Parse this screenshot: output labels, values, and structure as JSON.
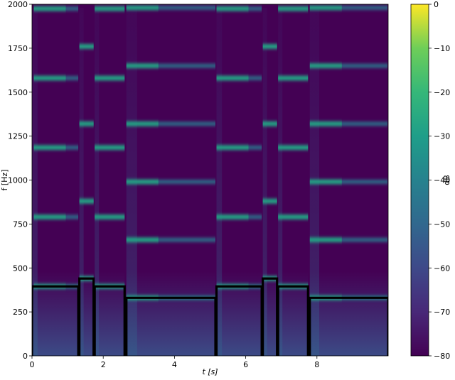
{
  "chart_data": {
    "type": "heatmap",
    "xlabel": "t [s]",
    "ylabel": "f [Hz]",
    "xlim": [
      0,
      10
    ],
    "ylim": [
      0,
      2000
    ],
    "xticks": [
      0,
      2,
      4,
      6,
      8
    ],
    "xtick_labels": [
      "0",
      "2",
      "4",
      "6",
      "8"
    ],
    "yticks": [
      0,
      250,
      500,
      750,
      1000,
      1250,
      1500,
      1750,
      2000
    ],
    "ytick_labels": [
      "0",
      "250",
      "500",
      "750",
      "1000",
      "1250",
      "1500",
      "1750",
      "2000"
    ],
    "colorbar": {
      "label": "dB",
      "range": [
        -80,
        0
      ],
      "ticks": [
        0,
        -10,
        -20,
        -30,
        -40,
        -50,
        -60,
        -70,
        -80
      ],
      "tick_labels": [
        "0",
        "−10",
        "−20",
        "−30",
        "−40",
        "−50",
        "−60",
        "−70",
        "−80"
      ],
      "colormap": "viridis"
    },
    "background_level_db": -80,
    "pitch_track": {
      "color": "#000000",
      "segments": [
        {
          "t_start": 0.0,
          "t_end": 1.3,
          "f0": 395
        },
        {
          "t_start": 1.33,
          "t_end": 1.73,
          "f0": 440
        },
        {
          "t_start": 1.76,
          "t_end": 2.6,
          "f0": 395
        },
        {
          "t_start": 2.65,
          "t_end": 5.15,
          "f0": 330
        },
        {
          "t_start": 5.18,
          "t_end": 6.45,
          "f0": 395
        },
        {
          "t_start": 6.48,
          "t_end": 6.88,
          "f0": 440
        },
        {
          "t_start": 6.91,
          "t_end": 7.75,
          "f0": 395
        },
        {
          "t_start": 7.8,
          "t_end": 10.0,
          "f0": 330
        }
      ]
    },
    "harmonic_bands": [
      {
        "t_start": 0.05,
        "t_end": 1.3,
        "freqs": [
          395,
          790,
          1185,
          1580,
          1975
        ],
        "db": -40
      },
      {
        "t_start": 1.33,
        "t_end": 1.73,
        "freqs": [
          440,
          880,
          1320,
          1760
        ],
        "db": -40
      },
      {
        "t_start": 1.76,
        "t_end": 2.6,
        "freqs": [
          395,
          790,
          1185,
          1580,
          1975
        ],
        "db": -40
      },
      {
        "t_start": 2.65,
        "t_end": 5.15,
        "freqs": [
          330,
          660,
          990,
          1320,
          1650,
          1980
        ],
        "db": -40
      },
      {
        "t_start": 5.18,
        "t_end": 6.45,
        "freqs": [
          395,
          790,
          1185,
          1580,
          1975
        ],
        "db": -40
      },
      {
        "t_start": 6.48,
        "t_end": 6.88,
        "freqs": [
          440,
          880,
          1320,
          1760
        ],
        "db": -40
      },
      {
        "t_start": 6.91,
        "t_end": 7.75,
        "freqs": [
          395,
          790,
          1185,
          1580,
          1975
        ],
        "db": -40
      },
      {
        "t_start": 7.8,
        "t_end": 9.98,
        "freqs": [
          330,
          660,
          990,
          1320,
          1650,
          1980
        ],
        "db": -40
      }
    ]
  }
}
